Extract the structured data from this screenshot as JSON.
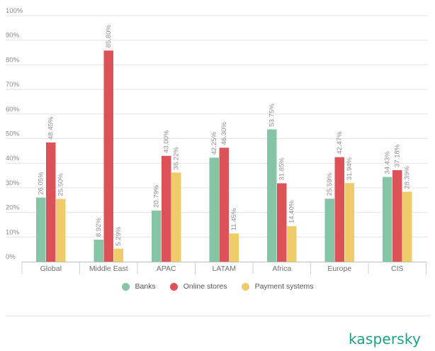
{
  "chart_data": {
    "type": "bar",
    "title": "",
    "xlabel": "",
    "ylabel": "",
    "ylim": [
      0,
      100
    ],
    "y_ticks": [
      "0%",
      "10%",
      "20%",
      "30%",
      "40%",
      "50%",
      "60%",
      "70%",
      "80%",
      "90%",
      "100%"
    ],
    "grid": true,
    "categories": [
      "Global",
      "Middle East",
      "APAC",
      "LATAM",
      "Africa",
      "Europe",
      "CIS"
    ],
    "series": [
      {
        "name": "Banks",
        "color": "#86c4a6",
        "values": [
          26.05,
          8.92,
          20.79,
          42.25,
          53.75,
          25.59,
          34.43
        ],
        "labels": [
          "26.05%",
          "8.92%",
          "20.79%",
          "42.25%",
          "53.75%",
          "25.59%",
          "34.43%"
        ]
      },
      {
        "name": "Online stores",
        "color": "#dd5257",
        "values": [
          48.45,
          85.8,
          43.0,
          46.3,
          31.85,
          42.47,
          37.18
        ],
        "labels": [
          "48.45%",
          "85.80%",
          "43.00%",
          "46.30%",
          "31.85%",
          "42.47%",
          "37.18%"
        ]
      },
      {
        "name": "Payment systems",
        "color": "#f0cb6a",
        "values": [
          25.5,
          5.29,
          36.22,
          11.45,
          14.4,
          31.94,
          28.39
        ],
        "labels": [
          "25.50%",
          "5.29%",
          "36.22%",
          "11.45%",
          "14.40%",
          "31.94%",
          "28.39%"
        ]
      }
    ],
    "legend_position": "bottom-center"
  },
  "brand": {
    "name": "kaspersky",
    "color": "#1aa187"
  }
}
